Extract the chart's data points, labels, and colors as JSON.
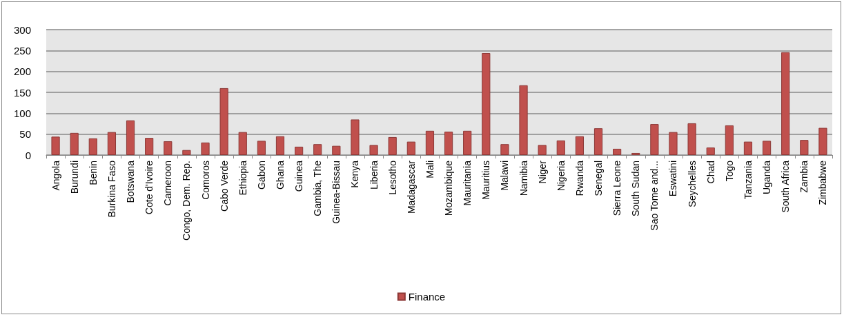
{
  "chart_data": {
    "type": "bar",
    "categories": [
      "Angola",
      "Burundi",
      "Benin",
      "Burkina Faso",
      "Botswana",
      "Cote d'Ivoire",
      "Cameroon",
      "Congo, Dem. Rep.",
      "Comoros",
      "Cabo Verde",
      "Ethiopia",
      "Gabon",
      "Ghana",
      "Guinea",
      "Gambia, The",
      "Guinea-Bissau",
      "Kenya",
      "Liberia",
      "Lesotho",
      "Madagascar",
      "Mali",
      "Mozambique",
      "Mauritania",
      "Mauritius",
      "Malawi",
      "Namibia",
      "Niger",
      "Nigeria",
      "Rwanda",
      "Senegal",
      "Sierra Leone",
      "South Sudan",
      "Sao Tome and...",
      "Eswatini",
      "Seychelles",
      "Chad",
      "Togo",
      "Tanzania",
      "Uganda",
      "South Africa",
      "Zambia",
      "Zimbabwe"
    ],
    "series": [
      {
        "name": "Finance",
        "color": "#c0504d",
        "values": [
          44,
          53,
          40,
          55,
          83,
          41,
          33,
          12,
          30,
          160,
          55,
          34,
          45,
          20,
          26,
          22,
          85,
          24,
          43,
          32,
          58,
          56,
          58,
          244,
          26,
          167,
          24,
          35,
          45,
          64,
          15,
          5,
          74,
          55,
          76,
          18,
          71,
          32,
          34,
          246,
          36,
          65
        ]
      }
    ],
    "ylim": [
      0,
      300
    ],
    "yticks": [
      0,
      50,
      100,
      150,
      200,
      250,
      300
    ],
    "grid": "y",
    "legend": "bottom"
  }
}
